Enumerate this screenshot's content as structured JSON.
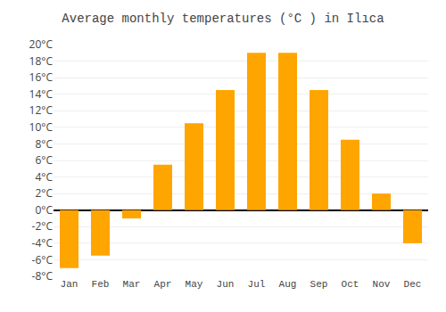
{
  "chart_data": {
    "type": "bar",
    "title": "Average monthly temperatures (°C ) in Ilıca",
    "categories": [
      "Jan",
      "Feb",
      "Mar",
      "Apr",
      "May",
      "Jun",
      "Jul",
      "Aug",
      "Sep",
      "Oct",
      "Nov",
      "Dec"
    ],
    "values": [
      -7,
      -5.5,
      -1,
      5.5,
      10.5,
      14.5,
      19,
      19,
      14.5,
      8.5,
      2,
      -4
    ],
    "color": "#FFA500",
    "ylim": [
      -8,
      20
    ],
    "yticks": [
      {
        "value": -8,
        "label": "-8°C"
      },
      {
        "value": -6,
        "label": "-6°C"
      },
      {
        "value": -4,
        "label": "-4°C"
      },
      {
        "value": -2,
        "label": "-2°C"
      },
      {
        "value": 0,
        "label": "0°C"
      },
      {
        "value": 2,
        "label": "2°C"
      },
      {
        "value": 4,
        "label": "4°C"
      },
      {
        "value": 6,
        "label": "6°C"
      },
      {
        "value": 8,
        "label": "8°C"
      },
      {
        "value": 10,
        "label": "10°C"
      },
      {
        "value": 12,
        "label": "12°C"
      },
      {
        "value": 14,
        "label": "14°C"
      },
      {
        "value": 16,
        "label": "16°C"
      },
      {
        "value": 18,
        "label": "18°C"
      },
      {
        "value": 20,
        "label": "20°C"
      }
    ],
    "grid": true
  }
}
